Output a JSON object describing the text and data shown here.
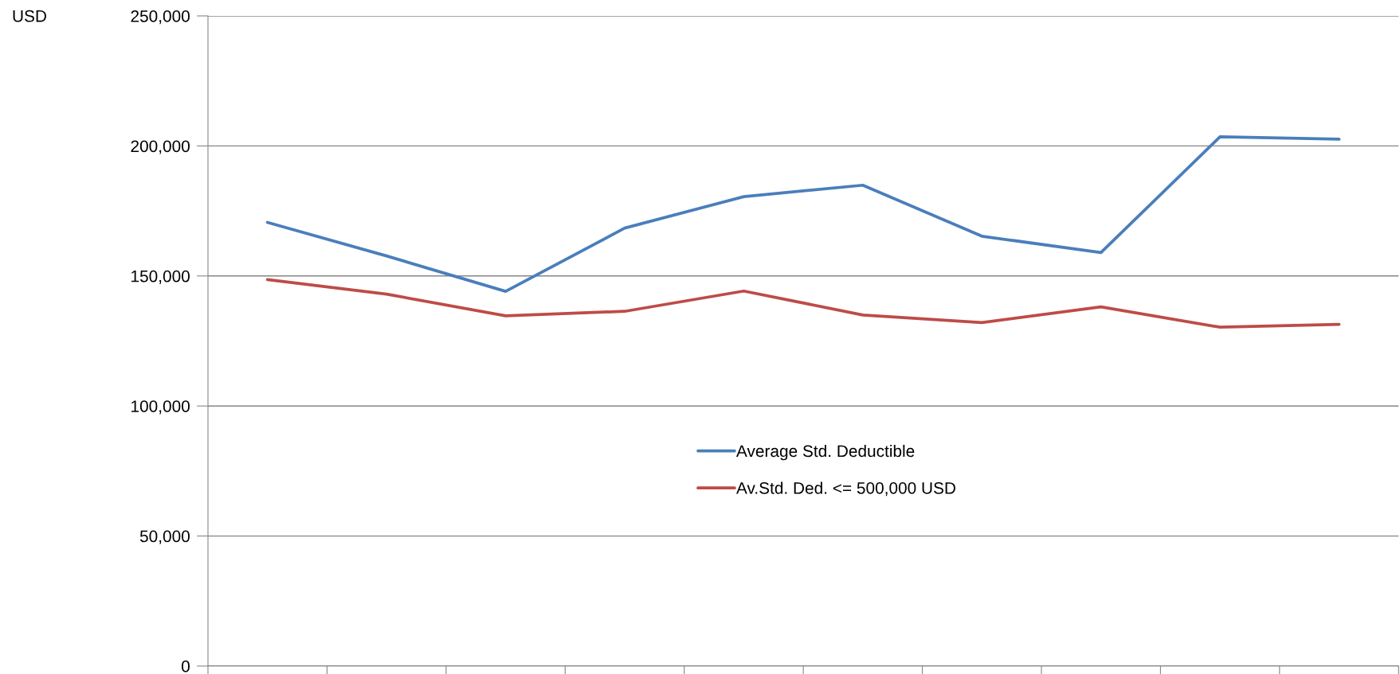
{
  "chart_data": {
    "type": "line",
    "annotations": [
      "USD"
    ],
    "categories": [
      null,
      null,
      null,
      null,
      null,
      null,
      null,
      null,
      null,
      null
    ],
    "series": [
      {
        "name": "Average Std. Deductible",
        "color": "#4a7ebb",
        "values": [
          170600,
          157700,
          144100,
          168400,
          180500,
          184900,
          165300,
          159000,
          203500,
          202600
        ]
      },
      {
        "name": "Av.Std. Ded. <= 500,000 USD",
        "color": "#be4b48",
        "values": [
          148600,
          143000,
          134700,
          136400,
          144200,
          135000,
          132100,
          138100,
          130300,
          131400
        ]
      }
    ],
    "ylim": [
      0,
      250000
    ],
    "yticks": [
      0,
      {
        "value": 50000,
        "label": "50,000"
      },
      {
        "value": 100000,
        "label": "100,000"
      },
      {
        "value": 150000,
        "label": "150,000"
      },
      {
        "value": 200000,
        "label": "200,000"
      },
      {
        "value": 250000,
        "label": "250,000"
      }
    ],
    "grid": "y",
    "legend": "center",
    "marker": "none",
    "line_style": "solid"
  }
}
